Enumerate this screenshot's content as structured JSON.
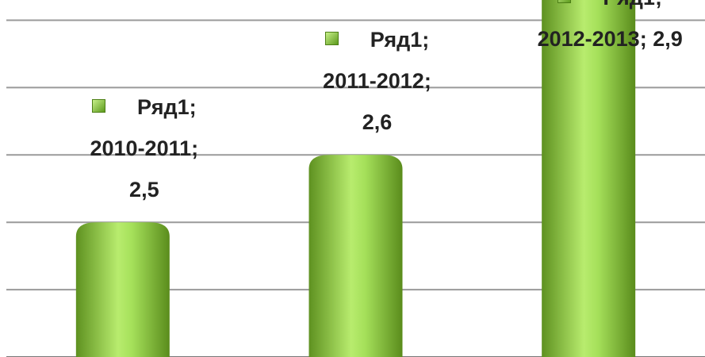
{
  "chart_data": {
    "type": "bar",
    "categories": [
      "2010-2011",
      "2011-2012",
      "2012-2013"
    ],
    "series": [
      {
        "name": "Ряд1",
        "color": "#8ccf3c",
        "values": [
          2.5,
          2.6,
          2.9
        ],
        "value_labels": [
          "2,5",
          "2,6",
          "2,9"
        ]
      }
    ],
    "ylim": [
      2.3,
      2.83
    ],
    "yticks": [
      2.3,
      2.4,
      2.5,
      2.6,
      2.7,
      2.8
    ],
    "grid": true
  }
}
